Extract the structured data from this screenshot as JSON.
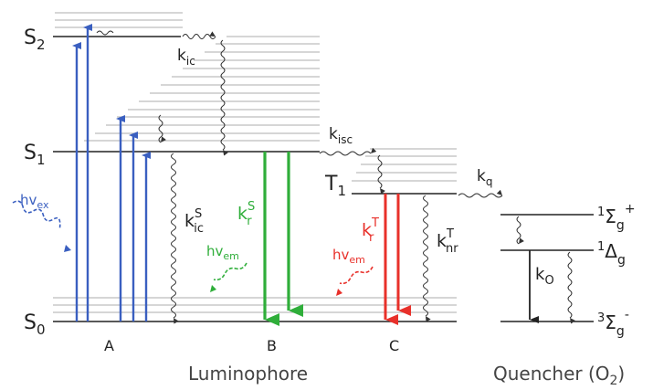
{
  "states": {
    "s2": {
      "main": "S",
      "sub": "2"
    },
    "s1": {
      "main": "S",
      "sub": "1"
    },
    "s0": {
      "main": "S",
      "sub": "0"
    },
    "t1": {
      "main": "T",
      "sub": "1"
    },
    "q_sigma_plus": {
      "pre": "1",
      "main": "Σ",
      "sub": "g",
      "sup": "+"
    },
    "q_delta": {
      "pre": "1",
      "main": "Δ",
      "sub": "g"
    },
    "q_sigma_minus": {
      "pre": "3",
      "main": "Σ",
      "sub": "g",
      "sup": "-"
    }
  },
  "rates": {
    "k_ic": {
      "main": "k",
      "sub": "ic"
    },
    "k_isc": {
      "main": "k",
      "sub": "isc"
    },
    "k_q": {
      "main": "k",
      "sub": "q"
    },
    "k_ic_s": {
      "main": "k",
      "sub": "ic",
      "sup": "S"
    },
    "k_r_s": {
      "main": "k",
      "sub": "r",
      "sup": "S"
    },
    "k_r_t": {
      "main": "k",
      "sub": "r",
      "sup": "T"
    },
    "k_nr_t": {
      "main": "k",
      "sub": "nr",
      "sup": "T"
    },
    "k_o": {
      "main": "k",
      "sub": "O"
    }
  },
  "photons": {
    "hv_ex": {
      "main": "hv",
      "sub": "ex"
    },
    "hv_em_green": {
      "main": "hv",
      "sub": "em"
    },
    "hv_em_red": {
      "main": "hv",
      "sub": "em"
    }
  },
  "panels": {
    "a": "A",
    "b": "B",
    "c": "C"
  },
  "groups": {
    "luminophore": "Luminophore",
    "quencher": "Quencher (O",
    "quencher_sub": "2",
    "quencher_close": ")"
  },
  "colors": {
    "blue": "#3a5fc0",
    "green": "#2fae3a",
    "red": "#e8302a",
    "grey": "#bbbbbb",
    "dark": "#222222"
  }
}
